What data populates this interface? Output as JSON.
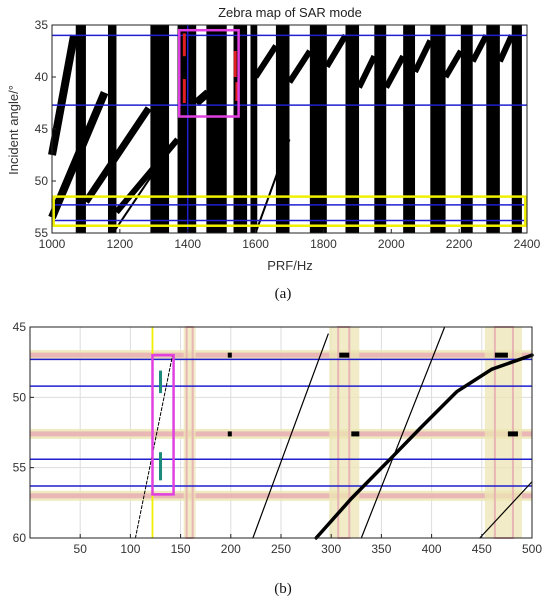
{
  "chart_data": [
    {
      "type": "heatmap",
      "panel_label": "(a)",
      "title": "Zebra map of SAR mode",
      "xlabel": "PRF/Hz",
      "ylabel": "Incident angle/°",
      "xlim": [
        1000,
        2400
      ],
      "ylim": [
        35,
        55
      ],
      "y_inverted": true,
      "x_ticks": [
        "1000",
        "1200",
        "1400",
        "1600",
        "1800",
        "2000",
        "2200",
        "2400"
      ],
      "y_ticks": [
        "35",
        "40",
        "45",
        "50",
        "55"
      ],
      "colors": {
        "band": "#000000",
        "background": "#ffffff",
        "hline": "#1f1fd0",
        "vline": "#1f1fd0",
        "magenta_box": "#e040e0",
        "yellow_box": "#f0f000",
        "red_marks": "#e02020"
      },
      "vertical_bands": [
        {
          "x": [
            1070,
            1100
          ]
        },
        {
          "x": [
            1165,
            1190
          ]
        },
        {
          "x": [
            1290,
            1345
          ]
        },
        {
          "x": [
            1370,
            1425
          ]
        },
        {
          "x": [
            1455,
            1515
          ]
        },
        {
          "x": [
            1535,
            1575
          ]
        },
        {
          "x": [
            1585,
            1605
          ]
        },
        {
          "x": [
            1660,
            1700
          ]
        },
        {
          "x": [
            1760,
            1810
          ]
        },
        {
          "x": [
            1865,
            1905
          ]
        },
        {
          "x": [
            1950,
            1985
          ]
        },
        {
          "x": [
            2035,
            2070
          ]
        },
        {
          "x": [
            2115,
            2160
          ]
        },
        {
          "x": [
            2205,
            2240
          ]
        },
        {
          "x": [
            2280,
            2320
          ]
        },
        {
          "x": [
            2355,
            2385
          ]
        }
      ],
      "diagonal_bands": [
        {
          "x0": 1000,
          "y0": 47.5,
          "x1": 1065,
          "y1": 36.0,
          "width": 8
        },
        {
          "x0": 1000,
          "y0": 53.5,
          "x1": 1155,
          "y1": 41.5,
          "width": 8
        },
        {
          "x0": 1100,
          "y0": 52.0,
          "x1": 1285,
          "y1": 43.0,
          "width": 7
        },
        {
          "x0": 1190,
          "y0": 53.0,
          "x1": 1370,
          "y1": 46.0,
          "width": 6
        },
        {
          "x0": 1180,
          "y0": 55.0,
          "x1": 1345,
          "y1": 47.0,
          "width": 2
        },
        {
          "x0": 1425,
          "y0": 42.5,
          "x1": 1460,
          "y1": 41.5,
          "width": 8
        },
        {
          "x0": 1600,
          "y0": 40.0,
          "x1": 1660,
          "y1": 37.0,
          "width": 6
        },
        {
          "x0": 1600,
          "y0": 55.0,
          "x1": 1700,
          "y1": 46.0,
          "width": 2
        },
        {
          "x0": 1700,
          "y0": 40.5,
          "x1": 1760,
          "y1": 37.5,
          "width": 6
        },
        {
          "x0": 1810,
          "y0": 39.0,
          "x1": 1865,
          "y1": 36.0,
          "width": 6
        },
        {
          "x0": 1905,
          "y0": 41.0,
          "x1": 1950,
          "y1": 38.0,
          "width": 6
        },
        {
          "x0": 1985,
          "y0": 41.0,
          "x1": 2035,
          "y1": 38.0,
          "width": 6
        },
        {
          "x0": 2070,
          "y0": 39.5,
          "x1": 2115,
          "y1": 36.5,
          "width": 6
        },
        {
          "x0": 2160,
          "y0": 40.0,
          "x1": 2205,
          "y1": 37.5,
          "width": 6
        },
        {
          "x0": 2240,
          "y0": 38.5,
          "x1": 2280,
          "y1": 36.0,
          "width": 6
        },
        {
          "x0": 2320,
          "y0": 38.5,
          "x1": 2355,
          "y1": 36.0,
          "width": 6
        }
      ],
      "horizontal_lines": [
        36.0,
        42.7,
        52.3,
        53.8
      ],
      "vertical_lines": [
        1400
      ],
      "magenta_box": {
        "x": [
          1375,
          1550
        ],
        "y": [
          35.5,
          43.8
        ]
      },
      "yellow_box": {
        "x": [
          1005,
          2395
        ],
        "y": [
          51.5,
          54.3
        ]
      },
      "red_marks": [
        {
          "x": 1390,
          "y": [
            35.8,
            38.0
          ]
        },
        {
          "x": 1390,
          "y": [
            40.2,
            42.5
          ]
        },
        {
          "x": 1540,
          "y": [
            37.5,
            40.0
          ]
        },
        {
          "x": 1545,
          "y": [
            40.5,
            42.3
          ]
        }
      ]
    },
    {
      "type": "heatmap",
      "panel_label": "(b)",
      "title": "",
      "xlabel": "",
      "ylabel": "",
      "xlim": [
        0,
        500
      ],
      "ylim": [
        45,
        60
      ],
      "y_inverted": true,
      "x_ticks": [
        "50",
        "100",
        "150",
        "200",
        "250",
        "300",
        "350",
        "400",
        "450",
        "500"
      ],
      "y_ticks": [
        "45",
        "50",
        "55",
        "60"
      ],
      "grid": true,
      "colors": {
        "curve": "#000000",
        "hline": "#1f1fd0",
        "vline": "#f0f000",
        "tan_band": "#ece6b4",
        "pink_band": "#e8b4b4",
        "magenta_box": "#e040e0",
        "teal_marks": "#1a8a7a"
      },
      "pink_hbands": [
        47.0,
        52.6,
        57.0
      ],
      "tan_vbands": [
        [
          153,
          165
        ],
        [
          298,
          328
        ],
        [
          453,
          490
        ]
      ],
      "pink_vbands": [
        [
          156,
          162
        ],
        [
          307,
          318
        ],
        [
          463,
          481
        ]
      ],
      "horizontal_lines": [
        47.3,
        49.2,
        54.4,
        56.3
      ],
      "vertical_lines": [
        122
      ],
      "magenta_box": {
        "x": [
          122,
          143
        ],
        "y": [
          47.0,
          56.9
        ]
      },
      "teal_marks": [
        {
          "x": 130,
          "y": [
            48.1,
            49.7
          ]
        },
        {
          "x": 130,
          "y": [
            53.9,
            55.9
          ]
        }
      ],
      "curves": [
        {
          "points": [
            [
              105,
              60
            ],
            [
              142,
              47
            ]
          ],
          "width": 1,
          "dash": true
        },
        {
          "points": [
            [
              222,
              60
            ],
            [
              297,
              45.5
            ]
          ],
          "width": 1.2
        },
        {
          "points": [
            [
              285,
              60
            ],
            [
              320,
              57.2
            ],
            [
              360,
              54.3
            ],
            [
              390,
              52.1
            ],
            [
              425,
              49.6
            ],
            [
              460,
              48.0
            ],
            [
              500,
              47.0
            ]
          ],
          "width": 3.5
        },
        {
          "points": [
            [
              330,
              60
            ],
            [
              413,
              45
            ]
          ],
          "width": 1.2
        },
        {
          "points": [
            [
              448,
              60
            ],
            [
              500,
              56.0
            ]
          ],
          "width": 1.2
        }
      ],
      "black_marks": [
        {
          "x": [
            308,
            318
          ],
          "y": 47.0
        },
        {
          "x": [
            463,
            476
          ],
          "y": 47.0
        },
        {
          "x": [
            320,
            328
          ],
          "y": 52.6
        },
        {
          "x": [
            476,
            486
          ],
          "y": 52.6
        },
        {
          "x": [
            197,
            201
          ],
          "y": 47.0
        },
        {
          "x": [
            197,
            201
          ],
          "y": 52.6
        }
      ]
    }
  ]
}
